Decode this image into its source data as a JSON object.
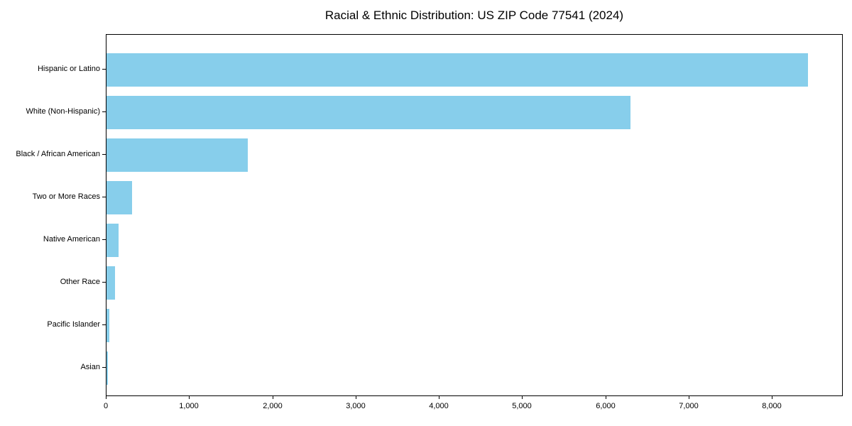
{
  "chart_data": {
    "type": "bar",
    "orientation": "horizontal",
    "title": "Racial & Ethnic Distribution: US ZIP Code 77541 (2024)",
    "categories": [
      "Hispanic or Latino",
      "White (Non-Hispanic)",
      "Black / African American",
      "Two or More Races",
      "Native American",
      "Other Race",
      "Pacific Islander",
      "Asian"
    ],
    "values": [
      8420,
      6290,
      1700,
      310,
      145,
      100,
      35,
      18
    ],
    "xlabel": "",
    "ylabel": "",
    "xlim": [
      0,
      8850
    ],
    "x_ticks": [
      {
        "value": 0,
        "label": "0"
      },
      {
        "value": 1000,
        "label": "1,000"
      },
      {
        "value": 2000,
        "label": "2,000"
      },
      {
        "value": 3000,
        "label": "3,000"
      },
      {
        "value": 4000,
        "label": "4,000"
      },
      {
        "value": 5000,
        "label": "5,000"
      },
      {
        "value": 6000,
        "label": "6,000"
      },
      {
        "value": 7000,
        "label": "7,000"
      },
      {
        "value": 8000,
        "label": "8,000"
      }
    ],
    "grid": false,
    "legend": "none",
    "colors": {
      "bar": "#87CEEB",
      "axis": "#000000",
      "text": "#000000",
      "background": "#ffffff"
    }
  }
}
